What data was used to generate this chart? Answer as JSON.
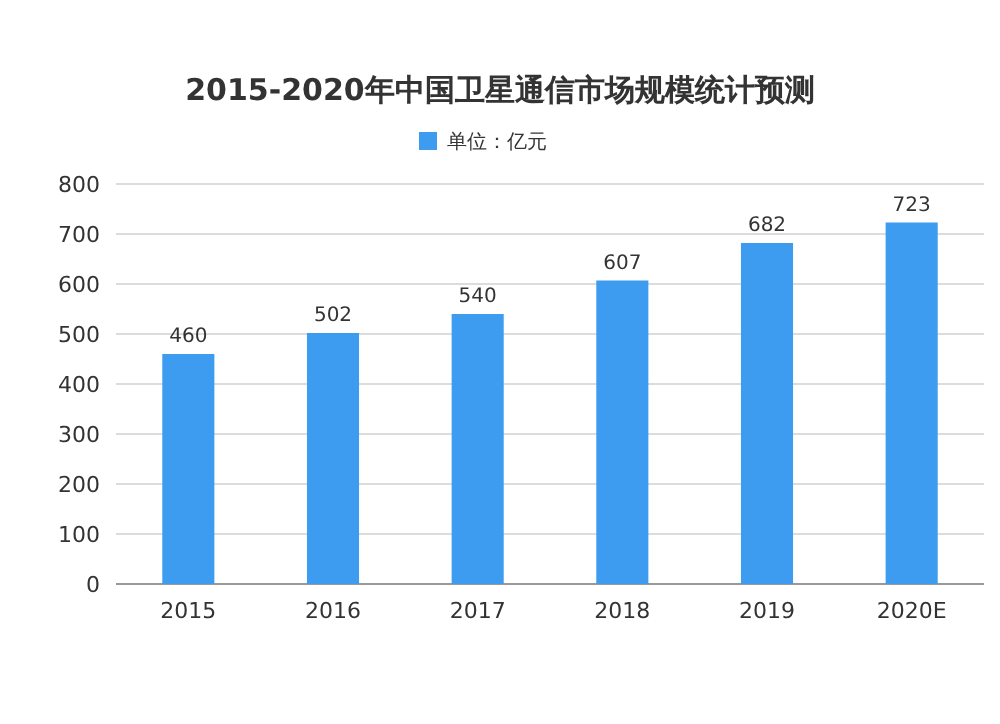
{
  "chart_data": {
    "type": "bar",
    "title": "2015-2020年中国卫星通信市场规模统计预测",
    "categories": [
      "2015",
      "2016",
      "2017",
      "2018",
      "2019",
      "2020E"
    ],
    "series": [
      {
        "name": "单位：亿元",
        "color": "#3d9cf0",
        "values": [
          460,
          502,
          540,
          607,
          682,
          723
        ]
      }
    ],
    "ylim": [
      0,
      800
    ],
    "yticks": [
      0,
      100,
      200,
      300,
      400,
      500,
      600,
      700,
      800
    ],
    "grid": "y",
    "legend": "top",
    "data_labels": true
  }
}
